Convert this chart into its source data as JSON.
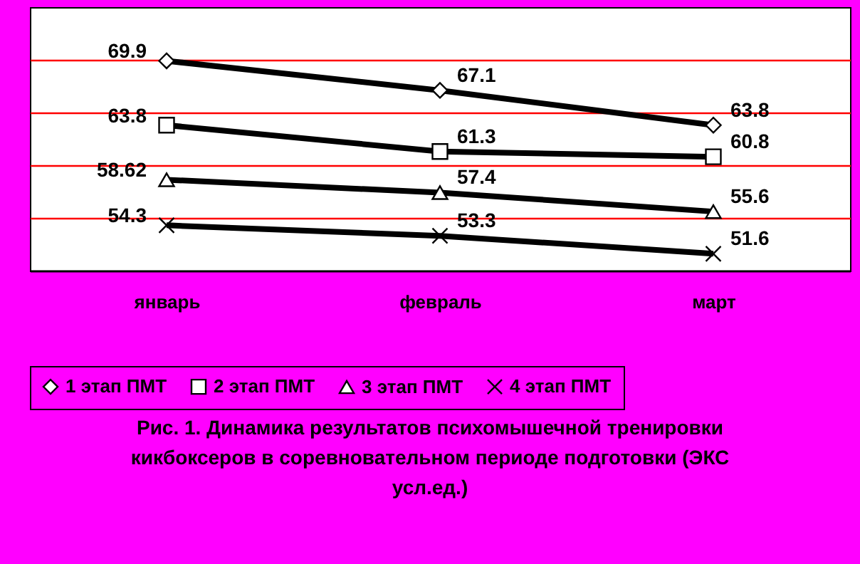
{
  "chart_data": {
    "type": "line",
    "categories": [
      "январь",
      "февраль",
      "март"
    ],
    "series": [
      {
        "name": "1 этап ПМТ",
        "color": "#000000",
        "marker": "diamond",
        "values": [
          69.9,
          67.1,
          63.8
        ]
      },
      {
        "name": "2 этап ПМТ",
        "color": "#000000",
        "marker": "square",
        "values": [
          63.8,
          61.3,
          60.8
        ]
      },
      {
        "name": "3 этап ПМТ",
        "color": "#000000",
        "marker": "triangle",
        "values": [
          58.62,
          57.4,
          55.6
        ]
      },
      {
        "name": "4 этап ПМТ",
        "color": "#000000",
        "marker": "cross",
        "values": [
          54.3,
          53.3,
          51.6
        ]
      }
    ],
    "ylim": [
      50,
      75
    ],
    "yticks": [
      {
        "value": 55,
        "label": null
      },
      {
        "value": 60,
        "label": null
      },
      {
        "value": 65,
        "label": null
      },
      {
        "value": 70,
        "label": null
      }
    ],
    "grid": "y",
    "legend": "bottom",
    "data_labels": true,
    "tick_labels": "x",
    "annotations": [
      "Рис. 1.  Динамика результатов психомышечной тренировки кикбоксеров в соревновательном периоде подготовки (ЭКС усл.ед.)"
    ]
  }
}
